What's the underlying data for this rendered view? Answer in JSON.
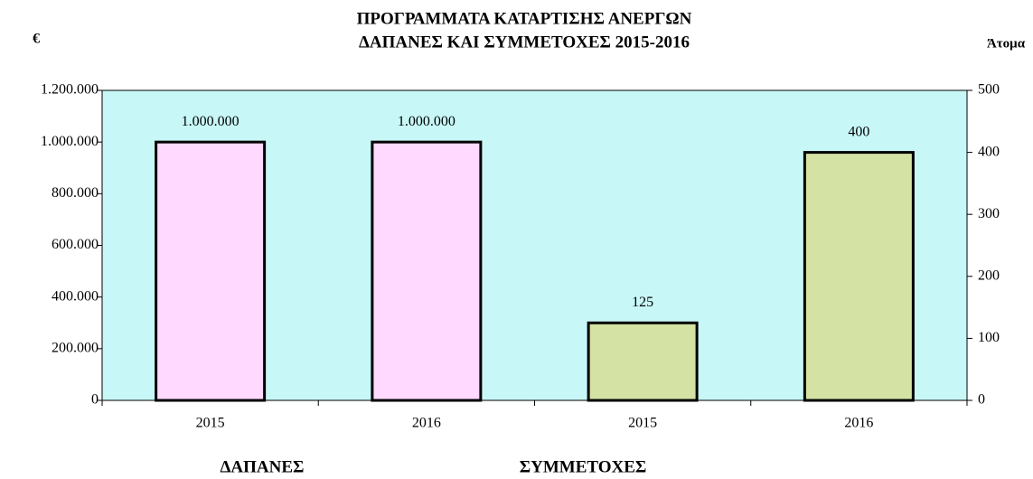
{
  "chart_data": {
    "type": "bar",
    "title": [
      "ΠΡΟΓΡΑΜΜΑΤΑ ΚΑΤΑΡΤΙΣΗΣ ΑΝΕΡΓΩΝ",
      "ΔΑΠΑΝΕΣ ΚΑΙ ΣΥΜΜΕΤΟΧΕΣ 2015-2016"
    ],
    "y_label": "€",
    "y2_label": "Άτομα",
    "categories": [
      "2015",
      "2016",
      "2015",
      "2016"
    ],
    "group_labels": [
      "ΔΑΠΑΝΕΣ",
      "ΣΥΜΜΕΤΟΧΕΣ"
    ],
    "series": [
      {
        "name": "ΔΑΠΑΝΕΣ",
        "color": "#ffd9ff",
        "values": [
          1000000,
          1000000,
          null,
          null
        ],
        "value_labels": [
          "1.000.000",
          "1.000.000",
          null,
          null
        ]
      },
      {
        "name": "ΣΥΜΜΕΤΟΧΕΣ",
        "color": "#d4e2a4",
        "axis": "y2",
        "values": [
          null,
          null,
          125,
          400
        ]
      }
    ],
    "ylim": [
      0,
      1200000
    ],
    "yticks": [
      0,
      {
        "value": 200000,
        "label": "200.000"
      },
      {
        "value": 400000,
        "label": "400.000"
      },
      {
        "value": 600000,
        "label": "600.000"
      },
      {
        "value": 800000,
        "label": "800.000"
      },
      {
        "value": 1000000,
        "label": "1.000.000"
      },
      {
        "value": 1200000,
        "label": "1.200.000"
      }
    ],
    "y2lim": [
      0,
      500
    ],
    "y2ticks": [
      0,
      100,
      200,
      300,
      400,
      500
    ],
    "background": "#c8f7f7"
  }
}
